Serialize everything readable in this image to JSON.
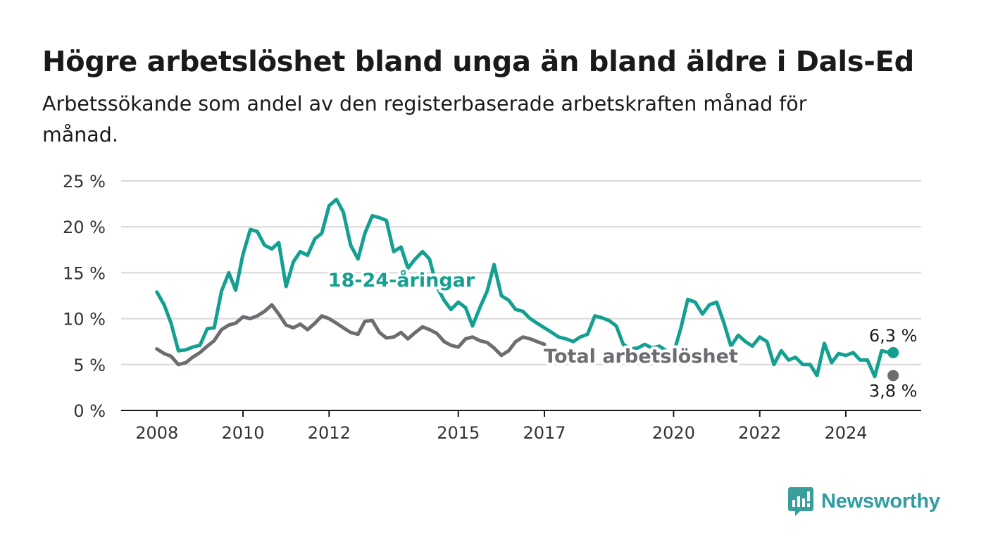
{
  "header": {
    "title": "Högre arbetslöshet bland unga än bland äldre i Dals-Ed",
    "subtitle": "Arbetssökande som andel av den registerbaserade arbetskraften månad för månad."
  },
  "brand": {
    "name": "Newsworthy",
    "icon": "newsworthy-bar-chart-icon",
    "color": "#3a9e9c"
  },
  "colors": {
    "youth": "#14a090",
    "total": "#6e6b71",
    "grid": "#d8d8d8",
    "axis": "#1a1a1a"
  },
  "chart_data": {
    "type": "line",
    "ylim": [
      0,
      25
    ],
    "xlim": [
      2007.17,
      2025.75
    ],
    "y_ticks": [
      {
        "value": 0,
        "label": "0 %"
      },
      {
        "value": 5,
        "label": "5 %"
      },
      {
        "value": 10,
        "label": "10 %"
      },
      {
        "value": 15,
        "label": "15 %"
      },
      {
        "value": 20,
        "label": "20 %"
      },
      {
        "value": 25,
        "label": "25 %"
      }
    ],
    "x_ticks": [
      {
        "value": 2008,
        "label": "2008"
      },
      {
        "value": 2010,
        "label": "2010"
      },
      {
        "value": 2012,
        "label": "2012"
      },
      {
        "value": 2015,
        "label": "2015"
      },
      {
        "value": 2017,
        "label": "2017"
      },
      {
        "value": 2020,
        "label": "2020"
      },
      {
        "value": 2022,
        "label": "2022"
      },
      {
        "value": 2024,
        "label": "2024"
      }
    ],
    "grid": true,
    "series": [
      {
        "name": "18-24-åringar",
        "key": "youth",
        "end_label": "6,3 %",
        "points": [
          [
            2008.0,
            12.9
          ],
          [
            2008.17,
            11.5
          ],
          [
            2008.33,
            9.5
          ],
          [
            2008.5,
            6.5
          ],
          [
            2008.67,
            6.6
          ],
          [
            2008.83,
            6.9
          ],
          [
            2009.0,
            7.1
          ],
          [
            2009.17,
            8.9
          ],
          [
            2009.33,
            9.0
          ],
          [
            2009.5,
            13.0
          ],
          [
            2009.67,
            15.0
          ],
          [
            2009.83,
            13.1
          ],
          [
            2010.0,
            17.0
          ],
          [
            2010.17,
            19.7
          ],
          [
            2010.33,
            19.5
          ],
          [
            2010.5,
            18.0
          ],
          [
            2010.67,
            17.6
          ],
          [
            2010.83,
            18.3
          ],
          [
            2011.0,
            13.5
          ],
          [
            2011.17,
            16.2
          ],
          [
            2011.33,
            17.3
          ],
          [
            2011.5,
            16.9
          ],
          [
            2011.67,
            18.7
          ],
          [
            2011.83,
            19.3
          ],
          [
            2012.0,
            22.3
          ],
          [
            2012.17,
            23.0
          ],
          [
            2012.33,
            21.6
          ],
          [
            2012.5,
            18.0
          ],
          [
            2012.67,
            16.5
          ],
          [
            2012.83,
            19.3
          ],
          [
            2013.0,
            21.2
          ],
          [
            2013.17,
            21.0
          ],
          [
            2013.33,
            20.7
          ],
          [
            2013.5,
            17.3
          ],
          [
            2013.67,
            17.8
          ],
          [
            2013.83,
            15.5
          ],
          [
            2014.0,
            16.5
          ],
          [
            2014.17,
            17.3
          ],
          [
            2014.33,
            16.5
          ],
          [
            2014.5,
            13.5
          ],
          [
            2014.67,
            12.0
          ],
          [
            2014.83,
            11.0
          ],
          [
            2015.0,
            11.8
          ],
          [
            2015.17,
            11.2
          ],
          [
            2015.33,
            9.2
          ],
          [
            2015.5,
            11.2
          ],
          [
            2015.67,
            13.0
          ],
          [
            2015.83,
            15.9
          ],
          [
            2016.0,
            12.5
          ],
          [
            2016.17,
            12.0
          ],
          [
            2016.33,
            11.0
          ],
          [
            2016.5,
            10.8
          ],
          [
            2016.67,
            10.0
          ],
          [
            2016.83,
            9.5
          ],
          [
            2017.0,
            9.0
          ],
          [
            2017.17,
            8.5
          ],
          [
            2017.33,
            8.0
          ],
          [
            2017.5,
            7.8
          ],
          [
            2017.67,
            7.5
          ],
          [
            2017.83,
            8.0
          ],
          [
            2018.0,
            8.3
          ],
          [
            2018.17,
            10.3
          ],
          [
            2018.33,
            10.1
          ],
          [
            2018.5,
            9.8
          ],
          [
            2018.67,
            9.2
          ],
          [
            2018.83,
            7.2
          ],
          [
            2019.0,
            6.7
          ],
          [
            2019.17,
            6.8
          ],
          [
            2019.33,
            7.2
          ],
          [
            2019.5,
            6.8
          ],
          [
            2019.67,
            7.0
          ],
          [
            2019.83,
            6.5
          ],
          [
            2020.0,
            6.2
          ],
          [
            2020.17,
            9.0
          ],
          [
            2020.33,
            12.1
          ],
          [
            2020.5,
            11.8
          ],
          [
            2020.67,
            10.5
          ],
          [
            2020.83,
            11.5
          ],
          [
            2021.0,
            11.8
          ],
          [
            2021.17,
            9.5
          ],
          [
            2021.33,
            7.0
          ],
          [
            2021.5,
            8.2
          ],
          [
            2021.67,
            7.5
          ],
          [
            2021.83,
            7.0
          ],
          [
            2022.0,
            8.0
          ],
          [
            2022.17,
            7.5
          ],
          [
            2022.33,
            5.0
          ],
          [
            2022.5,
            6.5
          ],
          [
            2022.67,
            5.5
          ],
          [
            2022.83,
            5.8
          ],
          [
            2023.0,
            5.0
          ],
          [
            2023.17,
            5.0
          ],
          [
            2023.33,
            3.8
          ],
          [
            2023.5,
            7.3
          ],
          [
            2023.67,
            5.2
          ],
          [
            2023.83,
            6.2
          ],
          [
            2024.0,
            6.0
          ],
          [
            2024.17,
            6.3
          ],
          [
            2024.33,
            5.5
          ],
          [
            2024.5,
            5.5
          ],
          [
            2024.67,
            3.7
          ],
          [
            2024.83,
            6.5
          ],
          [
            2025.0,
            6.3
          ]
        ]
      },
      {
        "name": "Total arbetslöshet",
        "key": "total",
        "end_label": "3,8 %",
        "points": [
          [
            2008.0,
            6.7
          ],
          [
            2008.17,
            6.2
          ],
          [
            2008.33,
            5.9
          ],
          [
            2008.5,
            5.0
          ],
          [
            2008.67,
            5.2
          ],
          [
            2008.83,
            5.8
          ],
          [
            2009.0,
            6.3
          ],
          [
            2009.17,
            7.0
          ],
          [
            2009.33,
            7.6
          ],
          [
            2009.5,
            8.8
          ],
          [
            2009.67,
            9.3
          ],
          [
            2009.83,
            9.5
          ],
          [
            2010.0,
            10.2
          ],
          [
            2010.17,
            10.0
          ],
          [
            2010.33,
            10.3
          ],
          [
            2010.5,
            10.8
          ],
          [
            2010.67,
            11.5
          ],
          [
            2010.83,
            10.5
          ],
          [
            2011.0,
            9.3
          ],
          [
            2011.17,
            9.0
          ],
          [
            2011.33,
            9.4
          ],
          [
            2011.5,
            8.8
          ],
          [
            2011.67,
            9.5
          ],
          [
            2011.83,
            10.3
          ],
          [
            2012.0,
            10.0
          ],
          [
            2012.17,
            9.5
          ],
          [
            2012.33,
            9.0
          ],
          [
            2012.5,
            8.5
          ],
          [
            2012.67,
            8.3
          ],
          [
            2012.83,
            9.7
          ],
          [
            2013.0,
            9.8
          ],
          [
            2013.17,
            8.5
          ],
          [
            2013.33,
            7.9
          ],
          [
            2013.5,
            8.0
          ],
          [
            2013.67,
            8.5
          ],
          [
            2013.83,
            7.8
          ],
          [
            2014.0,
            8.5
          ],
          [
            2014.17,
            9.1
          ],
          [
            2014.33,
            8.8
          ],
          [
            2014.5,
            8.4
          ],
          [
            2014.67,
            7.5
          ],
          [
            2014.83,
            7.1
          ],
          [
            2015.0,
            6.9
          ],
          [
            2015.17,
            7.8
          ],
          [
            2015.33,
            8.0
          ],
          [
            2015.5,
            7.6
          ],
          [
            2015.67,
            7.4
          ],
          [
            2015.83,
            6.8
          ],
          [
            2016.0,
            6.0
          ],
          [
            2016.17,
            6.5
          ],
          [
            2016.33,
            7.5
          ],
          [
            2016.5,
            8.0
          ],
          [
            2016.67,
            7.8
          ],
          [
            2016.83,
            7.5
          ],
          [
            2017.0,
            7.2
          ]
        ]
      }
    ]
  }
}
